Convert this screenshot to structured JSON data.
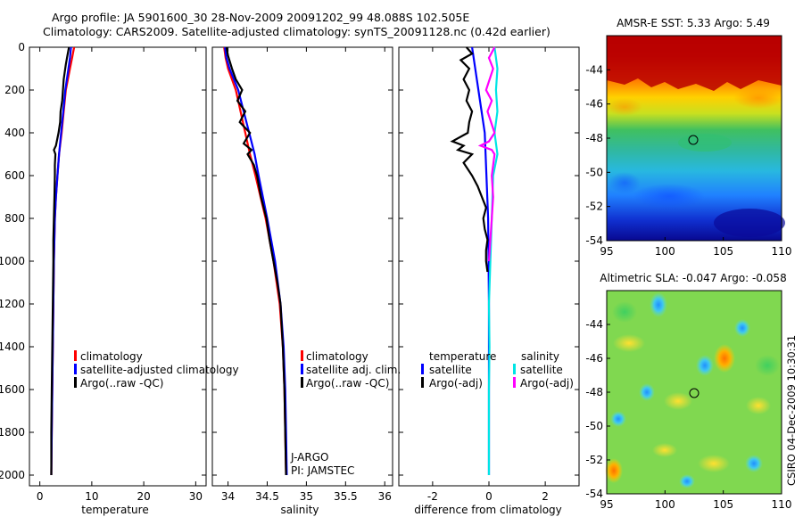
{
  "header": {
    "line1": "Argo profile: JA 5901600_30 28-Nov-2009 20091202_99 48.088S 102.505E",
    "line2": "Climatology: CARS2009. Satellite-adjusted climatology: synTS_20091128.nc (0.42d earlier)"
  },
  "stamp": "CSIRO 04-Dec-2009 10:30:31",
  "chart_data": [
    {
      "type": "line",
      "name": "temperature-profile",
      "xlabel": "temperature",
      "ylabel": "",
      "xlim": [
        -2,
        32
      ],
      "ylim": [
        2050,
        0
      ],
      "xticks": [
        0,
        10,
        20,
        30
      ],
      "yticks": [
        0,
        200,
        400,
        600,
        800,
        1000,
        1200,
        1400,
        1600,
        1800,
        2000
      ],
      "legend": [
        "climatology",
        "satellite-adjusted climatology",
        "Argo(..raw -QC)"
      ],
      "series": [
        {
          "name": "climatology",
          "color": "#ff0000",
          "depth": [
            0,
            50,
            100,
            200,
            300,
            400,
            500,
            600,
            700,
            800,
            1000,
            1200,
            1400,
            1600,
            1800,
            2000
          ],
          "values": [
            6.6,
            6.2,
            5.8,
            5.0,
            4.6,
            4.2,
            3.7,
            3.4,
            3.1,
            2.9,
            2.7,
            2.6,
            2.5,
            2.4,
            2.3,
            2.2
          ]
        },
        {
          "name": "satellite-adjusted climatology",
          "color": "#0000ff",
          "depth": [
            0,
            50,
            100,
            200,
            300,
            400,
            500,
            600,
            700,
            800,
            1000,
            1200,
            1400,
            1600,
            1800,
            2000
          ],
          "values": [
            6.0,
            5.8,
            5.5,
            4.9,
            4.5,
            4.1,
            3.7,
            3.4,
            3.1,
            2.9,
            2.7,
            2.6,
            2.5,
            2.4,
            2.3,
            2.2
          ]
        },
        {
          "name": "Argo(..raw -QC)",
          "color": "#000000",
          "depth": [
            0,
            40,
            80,
            150,
            250,
            300,
            350,
            400,
            460,
            480,
            500,
            550,
            600,
            700,
            800,
            900,
            1000,
            1200,
            1400,
            1600,
            1800,
            2000
          ],
          "values": [
            5.6,
            5.3,
            5.0,
            4.6,
            4.3,
            4.0,
            3.9,
            3.6,
            3.1,
            2.7,
            3.0,
            2.9,
            2.9,
            2.8,
            2.7,
            2.6,
            2.6,
            2.5,
            2.4,
            2.3,
            2.2,
            2.2
          ]
        }
      ]
    },
    {
      "type": "line",
      "name": "salinity-profile",
      "xlabel": "salinity",
      "xlim": [
        33.8,
        36.1
      ],
      "ylim": [
        2050,
        0
      ],
      "xticks": [
        34,
        34.5,
        35,
        35.5,
        36
      ],
      "legend": [
        "climatology",
        "satellite adj. clim.",
        "Argo(..raw -QC)"
      ],
      "annotation": [
        "J-ARGO",
        "PI: JAMSTEC"
      ],
      "series": [
        {
          "name": "climatology",
          "color": "#ff0000",
          "depth": [
            0,
            50,
            100,
            200,
            300,
            400,
            500,
            600,
            800,
            1000,
            1200,
            1400,
            1600,
            1800,
            2000
          ],
          "values": [
            33.95,
            33.97,
            34.0,
            34.1,
            34.16,
            34.22,
            34.28,
            34.35,
            34.48,
            34.58,
            34.66,
            34.7,
            34.72,
            34.73,
            34.74
          ]
        },
        {
          "name": "satellite adj. clim.",
          "color": "#0000ff",
          "depth": [
            0,
            50,
            100,
            200,
            300,
            400,
            500,
            600,
            800,
            1000,
            1200,
            1400,
            1600,
            1800,
            2000
          ],
          "values": [
            33.96,
            33.98,
            34.02,
            34.13,
            34.2,
            34.27,
            34.34,
            34.39,
            34.5,
            34.6,
            34.67,
            34.71,
            34.73,
            34.74,
            34.75
          ]
        },
        {
          "name": "Argo(..raw -QC)",
          "color": "#000000",
          "depth": [
            0,
            40,
            100,
            150,
            200,
            250,
            300,
            350,
            400,
            450,
            480,
            500,
            550,
            600,
            700,
            800,
            900,
            1000,
            1100,
            1200,
            1400,
            1600,
            1800,
            2000
          ],
          "values": [
            33.98,
            34.0,
            34.05,
            34.1,
            34.18,
            34.12,
            34.22,
            34.15,
            34.28,
            34.2,
            34.3,
            34.25,
            34.33,
            34.37,
            34.42,
            34.49,
            34.53,
            34.58,
            34.63,
            34.67,
            34.7,
            34.72,
            34.73,
            34.74
          ]
        }
      ]
    },
    {
      "type": "line",
      "name": "difference-profile",
      "xlabel": "difference from climatology",
      "xlim": [
        -3.2,
        3.2
      ],
      "ylim": [
        2050,
        0
      ],
      "xticks": [
        -2,
        0,
        2
      ],
      "legend": [
        "temperature",
        "satellite",
        "Argo(-adj)",
        "salinity",
        "satellite",
        "Argo(-adj)"
      ],
      "series": [
        {
          "name": "temperature satellite",
          "color": "#0000ff",
          "depth": [
            0,
            400,
            800,
            1200,
            1600,
            2000
          ],
          "values": [
            -0.6,
            -0.15,
            -0.03,
            0.0,
            0.0,
            0.0
          ]
        },
        {
          "name": "temperature Argo(-adj)",
          "color": "#000000",
          "depth": [
            0,
            30,
            60,
            100,
            150,
            200,
            250,
            300,
            350,
            400,
            440,
            460,
            480,
            500,
            520,
            540,
            600,
            650,
            700,
            750,
            800,
            850,
            900,
            950,
            1000,
            1050
          ],
          "values": [
            -0.8,
            -0.6,
            -1.0,
            -0.7,
            -0.9,
            -0.7,
            -0.8,
            -0.6,
            -0.7,
            -0.75,
            -1.3,
            -0.9,
            -1.1,
            -0.6,
            -0.75,
            -0.9,
            -0.6,
            -0.4,
            -0.25,
            -0.1,
            -0.2,
            -0.15,
            -0.05,
            -0.1,
            -0.1,
            -0.05
          ]
        },
        {
          "name": "salinity satellite",
          "color": "#00e5e5",
          "depth": [
            0,
            100,
            200,
            300,
            400,
            500,
            600,
            800,
            1000,
            1200,
            1400,
            1600,
            1800,
            2000
          ],
          "values": [
            0.2,
            0.3,
            0.25,
            0.3,
            0.2,
            0.3,
            0.15,
            0.1,
            0.05,
            0.0,
            0.02,
            0.0,
            0.0,
            0.0
          ]
        },
        {
          "name": "salinity Argo(-adj)",
          "color": "#ff00ff",
          "depth": [
            0,
            50,
            100,
            200,
            250,
            300,
            400,
            440,
            460,
            480,
            500,
            600,
            700,
            800,
            900,
            1000
          ],
          "values": [
            0.2,
            0.0,
            0.15,
            -0.1,
            0.1,
            -0.05,
            0.2,
            0.0,
            -0.3,
            0.1,
            0.2,
            0.1,
            0.15,
            0.1,
            0.05,
            0.0
          ]
        }
      ]
    },
    {
      "type": "heatmap",
      "name": "sst-map",
      "title": "AMSR-E SST: 5.33 Argo: 5.49",
      "xlim": [
        95,
        110
      ],
      "ylim": [
        -54,
        -42
      ],
      "xticks": [
        95,
        100,
        105,
        110
      ],
      "yticks": [
        -44,
        -46,
        -48,
        -50,
        -52,
        -54
      ],
      "marker": {
        "lon": 102.5,
        "lat": -48.1
      }
    },
    {
      "type": "heatmap",
      "name": "sla-map",
      "title": "Altimetric SLA: -0.047 Argo: -0.058",
      "xlim": [
        95,
        110
      ],
      "ylim": [
        -54,
        -42
      ],
      "xticks": [
        95,
        100,
        105,
        110
      ],
      "yticks": [
        -44,
        -46,
        -48,
        -50,
        -52,
        -54
      ],
      "marker": {
        "lon": 102.5,
        "lat": -48.1
      }
    }
  ]
}
